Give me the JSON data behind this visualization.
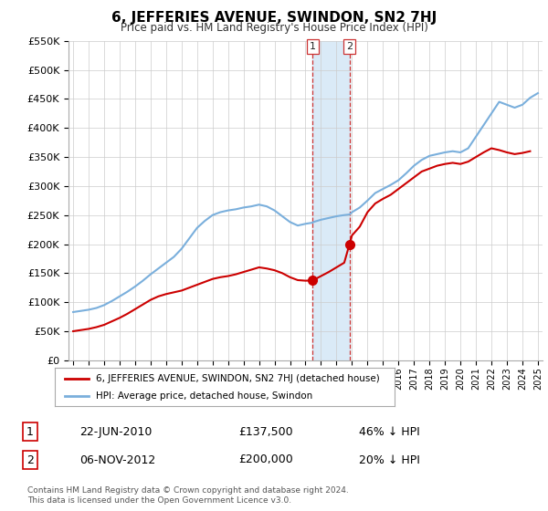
{
  "title": "6, JEFFERIES AVENUE, SWINDON, SN2 7HJ",
  "subtitle": "Price paid vs. HM Land Registry's House Price Index (HPI)",
  "footer": "Contains HM Land Registry data © Crown copyright and database right 2024.\nThis data is licensed under the Open Government Licence v3.0.",
  "legend_line1": "6, JEFFERIES AVENUE, SWINDON, SN2 7HJ (detached house)",
  "legend_line2": "HPI: Average price, detached house, Swindon",
  "transaction1_date": "22-JUN-2010",
  "transaction1_price": "£137,500",
  "transaction1_hpi": "46% ↓ HPI",
  "transaction2_date": "06-NOV-2012",
  "transaction2_price": "£200,000",
  "transaction2_hpi": "20% ↓ HPI",
  "red_color": "#cc0000",
  "blue_color": "#7aafdc",
  "shade_color": "#daeaf7",
  "grid_color": "#cccccc",
  "background_color": "#ffffff",
  "marker1_x": 2010.47,
  "marker2_x": 2012.84,
  "ylim": [
    0,
    550000
  ],
  "xlim": [
    1994.7,
    2025.3
  ]
}
